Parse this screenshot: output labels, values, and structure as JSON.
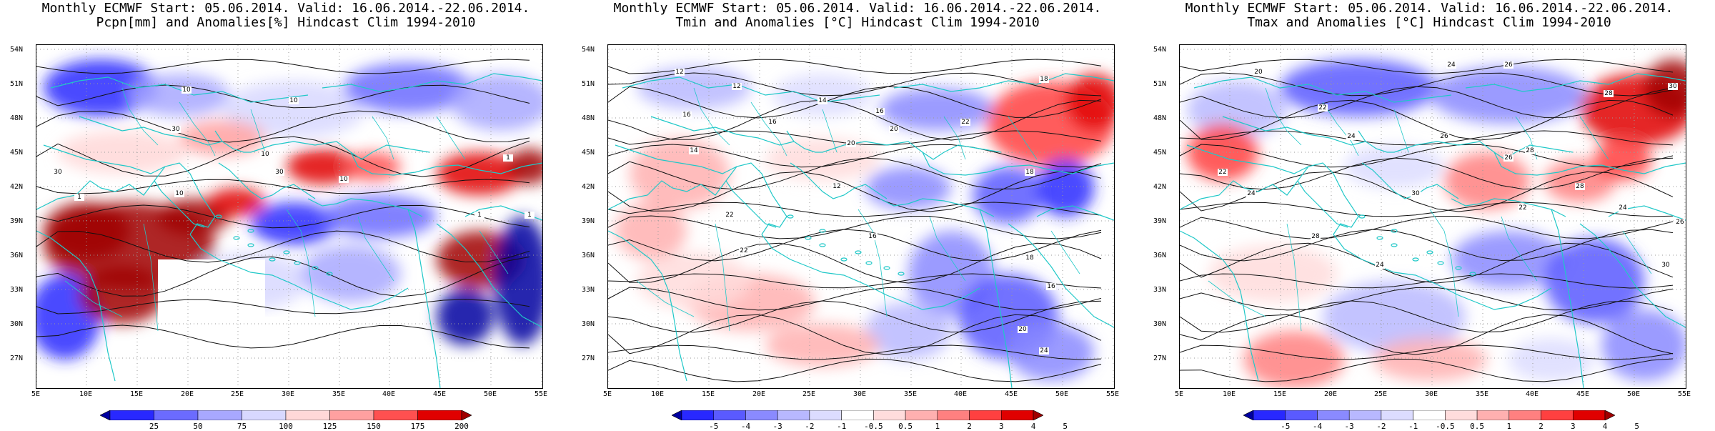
{
  "panels": [
    {
      "title_line1": "Monthly ECMWF Start: 05.06.2014. Valid: 16.06.2014.-22.06.2014.",
      "title_line2": "Pcpn[mm] and Anomalies[%] Hindcast Clim 1994-2010",
      "colorbar_ticks": [
        "25",
        "50",
        "75",
        "100",
        "125",
        "150",
        "175",
        "200"
      ],
      "colorbar_colors": [
        "#0000a0",
        "#2828ff",
        "#6b6bff",
        "#a8a8ff",
        "#d8d8ff",
        "#ffd8d8",
        "#ffa0a0",
        "#ff5050",
        "#e00000",
        "#a00000"
      ],
      "contour_labels": [
        "30",
        "30",
        "10",
        "10",
        "30",
        "10",
        "1",
        "1",
        "10",
        "1",
        "1",
        "10"
      ]
    },
    {
      "title_line1": "Monthly ECMWF Start: 05.06.2014. Valid: 16.06.2014.-22.06.2014.",
      "title_line2": "Tmin and Anomalies [°C] Hindcast Clim 1994-2010",
      "colorbar_ticks": [
        "-5",
        "-4",
        "-3",
        "-2",
        "-1",
        "-0.5",
        "0.5",
        "1",
        "2",
        "3",
        "4",
        "5"
      ],
      "colorbar_colors": [
        "#0000a0",
        "#2828ff",
        "#5a5aff",
        "#8a8aff",
        "#b8b8ff",
        "#dcdcff",
        "#ffffff",
        "#ffdcdc",
        "#ffb0b0",
        "#ff8080",
        "#ff4040",
        "#e00000",
        "#a00000"
      ],
      "contour_labels": [
        "12",
        "12",
        "14",
        "18",
        "16",
        "16",
        "16",
        "14",
        "20",
        "22",
        "20",
        "12",
        "18",
        "22",
        "16",
        "18",
        "20",
        "24",
        "22",
        "16"
      ]
    },
    {
      "title_line1": "Monthly ECMWF Start: 05.06.2014. Valid: 16.06.2014.-22.06.2014.",
      "title_line2": "Tmax and Anomalies [°C] Hindcast Clim 1994-2010",
      "colorbar_ticks": [
        "-5",
        "-4",
        "-3",
        "-2",
        "-1",
        "-0.5",
        "0.5",
        "1",
        "2",
        "3",
        "4",
        "5"
      ],
      "colorbar_colors": [
        "#0000a0",
        "#2828ff",
        "#5a5aff",
        "#8a8aff",
        "#b8b8ff",
        "#dcdcff",
        "#ffffff",
        "#ffdcdc",
        "#ffb0b0",
        "#ff8080",
        "#ff4040",
        "#e00000",
        "#a00000"
      ],
      "contour_labels": [
        "20",
        "24",
        "26",
        "28",
        "30",
        "22",
        "24",
        "26",
        "28",
        "22",
        "24",
        "30",
        "26",
        "28",
        "24",
        "30",
        "24",
        "28",
        "22",
        "26"
      ]
    }
  ],
  "axes": {
    "lat_labels": [
      "54N",
      "51N",
      "48N",
      "45N",
      "42N",
      "39N",
      "36N",
      "33N",
      "30N",
      "27N"
    ],
    "lon_labels": [
      "5E",
      "10E",
      "15E",
      "20E",
      "25E",
      "30E",
      "35E",
      "40E",
      "45E",
      "50E",
      "55E"
    ]
  }
}
